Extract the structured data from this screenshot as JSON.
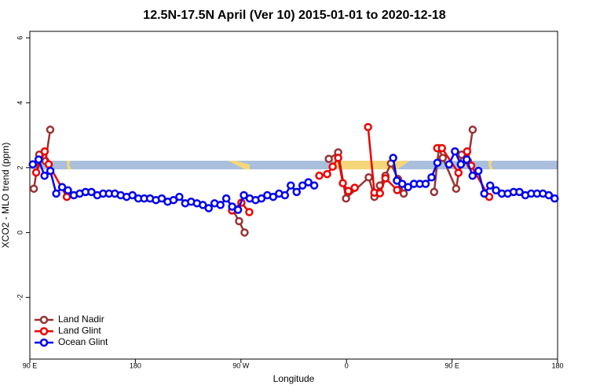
{
  "chart_data": {
    "type": "line",
    "title": "12.5N-17.5N April (Ver 10)   2015-01-01 to 2020-12-18",
    "x_label": "Longitude",
    "y_label": "XCO2 - MLO trend (ppm)",
    "xlim": [
      90,
      540
    ],
    "ylim": [
      -3.9,
      6.2
    ],
    "xticks": [
      {
        "value": 90,
        "label": "90 E"
      },
      180,
      {
        "value": 270,
        "label": "90 W"
      },
      {
        "value": 360,
        "label": "0"
      },
      {
        "value": 450,
        "label": "90 E"
      },
      {
        "value": 540,
        "label": "180"
      }
    ],
    "yticks": [
      -2,
      0,
      2,
      4,
      6
    ],
    "legend": "bottom-left",
    "series": [
      {
        "name": "Land Nadir",
        "color": "#993333",
        "x": [
          93.4,
          98,
          103.4,
          107.4,
          200,
          263,
          268.4,
          273.1,
          300,
          344.9,
          352.9,
          359.6,
          379,
          383.8,
          388.5,
          393.2,
          397.9,
          403.9,
          408.8,
          420,
          434.7,
          438.8,
          442.1,
          453.5,
          458.2,
          463.6,
          467.6
        ],
        "values": [
          1.35,
          2.4,
          2.2,
          3.17,
          null,
          0.7,
          0.35,
          0.0,
          null,
          2.27,
          2.47,
          1.05,
          1.7,
          1.1,
          1.45,
          1.75,
          2.13,
          1.65,
          1.2,
          null,
          1.25,
          2.6,
          2.3,
          1.35,
          2.4,
          2.2,
          3.17
        ]
      },
      {
        "name": "Land Glint",
        "color": "#ee0000",
        "x": [
          95.4,
          102.7,
          106.1,
          121.5,
          200,
          262.4,
          270.4,
          277.1,
          300,
          336.8,
          343.5,
          348.2,
          352.9,
          356.9,
          361.6,
          367,
          372,
          378.4,
          383.8,
          388.5,
          393.2,
          403.2,
          420,
          437.4,
          441.4,
          455.5,
          462.9,
          466.3,
          481.7
        ],
        "values": [
          1.85,
          2.5,
          2.1,
          1.1,
          null,
          0.68,
          0.92,
          0.63,
          null,
          1.75,
          1.8,
          2.03,
          2.3,
          1.52,
          1.28,
          1.38,
          null,
          3.25,
          1.23,
          1.21,
          1.67,
          1.31,
          null,
          2.6,
          2.6,
          1.84,
          2.5,
          2.06,
          1.1
        ]
      },
      {
        "name": "Ocean Glint",
        "color": "#0000ee",
        "x": [
          92.5,
          97.5,
          102.5,
          107.5,
          112.5,
          117.5,
          122.5,
          127.5,
          132.5,
          137.5,
          142.5,
          147.5,
          152.5,
          157.5,
          162.5,
          167.5,
          172.5,
          177.5,
          182.5,
          187.5,
          192.5,
          197.5,
          202.5,
          207.5,
          212.5,
          217.5,
          222.5,
          227.5,
          232.5,
          237.5,
          242.5,
          247.5,
          252.5,
          257.5,
          262.5,
          267.5,
          272.5,
          277.5,
          282.5,
          287.5,
          292.5,
          297.5,
          302.5,
          307.5,
          312.5,
          317.5,
          322.5,
          327.5,
          332.5,
          365,
          399.8,
          403,
          407.5,
          412.5,
          417.5,
          422.5,
          427.5,
          432.5,
          437.5,
          442.5,
          447.5,
          452.5,
          457.5,
          462.5,
          467.5,
          472.5,
          477.5,
          482.5,
          487.5,
          492.5,
          497.5,
          502.5,
          507.5,
          512.5,
          517.5,
          522.5,
          527.5,
          532.5,
          537.5
        ],
        "values": [
          2.1,
          2.25,
          1.75,
          1.9,
          1.2,
          1.4,
          1.3,
          1.15,
          1.2,
          1.25,
          1.25,
          1.15,
          1.2,
          1.2,
          1.2,
          1.15,
          1.1,
          1.15,
          1.05,
          1.05,
          1.05,
          1.0,
          1.05,
          0.95,
          1.0,
          1.1,
          0.9,
          0.95,
          0.9,
          0.85,
          0.75,
          0.9,
          0.85,
          1.05,
          0.8,
          0.7,
          1.15,
          1.05,
          1.0,
          1.05,
          1.15,
          1.1,
          1.2,
          1.15,
          1.45,
          1.25,
          1.45,
          1.55,
          1.45,
          null,
          2.3,
          1.6,
          1.5,
          1.4,
          1.5,
          1.5,
          1.5,
          1.7,
          2.15,
          null,
          2.1,
          2.5,
          2.1,
          2.25,
          1.75,
          1.9,
          1.2,
          1.45,
          1.3,
          1.2,
          1.2,
          1.25,
          1.25,
          1.15,
          1.2,
          1.2,
          1.2,
          1.15,
          1.05
        ]
      }
    ]
  }
}
